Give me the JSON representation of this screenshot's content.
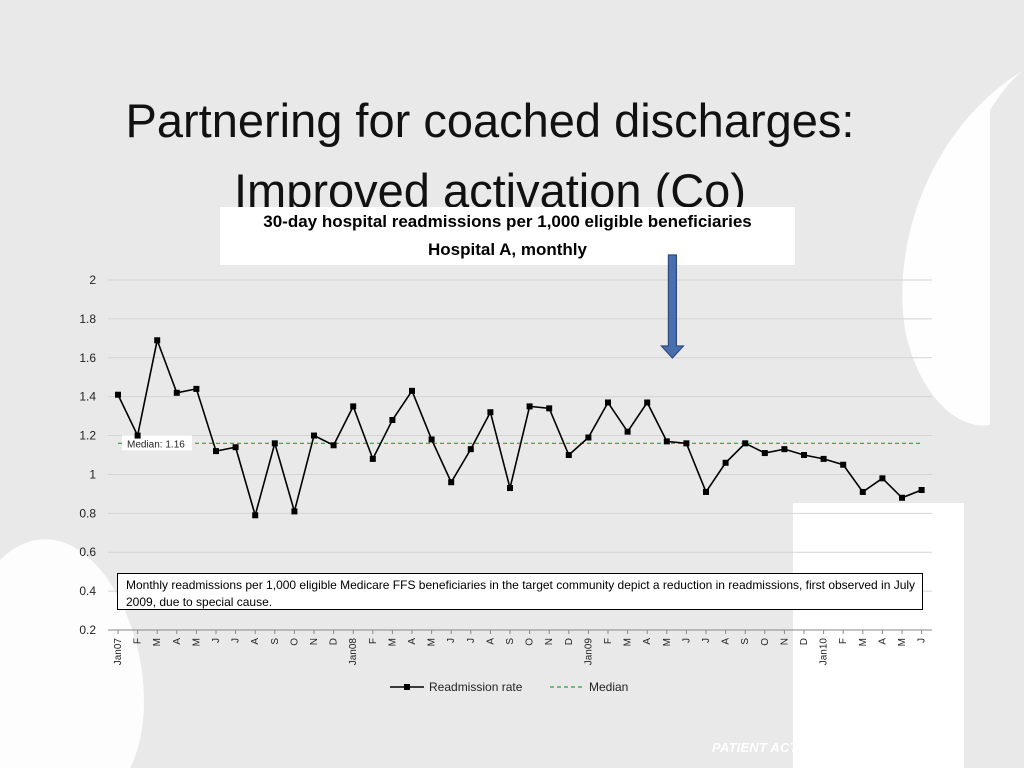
{
  "slide": {
    "title_line1": "Partnering for coached discharges:",
    "title_line2": "Improved activation (Co)",
    "footer": "PATIENT ACTIVATION"
  },
  "annotation": "Monthly readmissions per 1,000 eligible Medicare FFS beneficiaries in the target community depict a reduction in readmissions, first observed in July 2009, due to special cause.",
  "colors": {
    "series_line": "#000000",
    "median_line": "#2e9e3e",
    "arrow_fill": "#4a6fb0",
    "arrow_stroke": "#2c4a80"
  },
  "chart_data": {
    "type": "line",
    "title": "30-day hospital readmissions per 1,000 eligible beneficiaries",
    "subtitle": "Hospital A, monthly",
    "ylim": [
      0.2,
      2
    ],
    "yticks": [
      "0.2",
      "0.4",
      "0.6",
      "0.8",
      "1",
      "1.2",
      "1.4",
      "1.6",
      "1.8",
      "2"
    ],
    "grid": true,
    "legend_position": "bottom",
    "categories": [
      "Jan07",
      "F",
      "M",
      "A",
      "M",
      "J",
      "J",
      "A",
      "S",
      "O",
      "N",
      "D",
      "Jan08",
      "F",
      "M",
      "A",
      "M",
      "J",
      "J",
      "A",
      "S",
      "O",
      "N",
      "D",
      "Jan09",
      "F",
      "M",
      "A",
      "M",
      "J",
      "J",
      "A",
      "S",
      "O",
      "N",
      "D",
      "Jan10",
      "F",
      "M",
      "A",
      "M",
      "J"
    ],
    "series": [
      {
        "name": "Readmission rate",
        "values": [
          1.41,
          1.2,
          1.69,
          1.42,
          1.44,
          1.12,
          1.14,
          0.79,
          1.16,
          0.81,
          1.2,
          1.15,
          1.35,
          1.08,
          1.28,
          1.43,
          1.18,
          0.96,
          1.13,
          1.32,
          0.93,
          1.35,
          1.34,
          1.1,
          1.19,
          1.37,
          1.22,
          1.37,
          1.17,
          1.16,
          0.91,
          1.06,
          1.16,
          1.11,
          1.13,
          1.1,
          1.08,
          1.05,
          0.91,
          0.98,
          0.88,
          0.92
        ]
      }
    ],
    "median": {
      "name": "Median",
      "value": 1.16,
      "label": "Median: 1.16"
    },
    "intervention_marker": {
      "category_index": 29
    }
  }
}
